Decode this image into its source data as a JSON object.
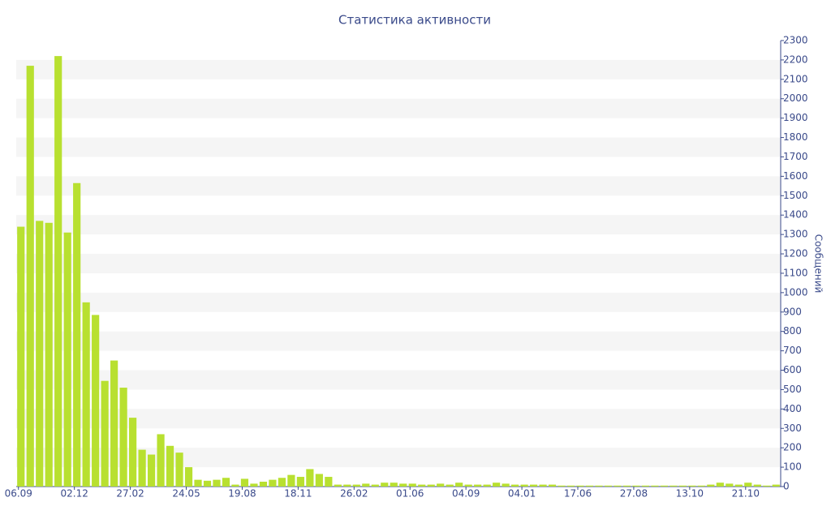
{
  "chart_data": {
    "type": "bar",
    "title": "Статистика активности",
    "y_label": "Сообщений",
    "color": "#b8e030",
    "categories": [
      "06.09",
      null,
      null,
      null,
      null,
      null,
      "02.12",
      null,
      null,
      null,
      null,
      null,
      "27.02",
      null,
      null,
      null,
      null,
      null,
      "24.05",
      null,
      null,
      null,
      null,
      null,
      "19.08",
      null,
      null,
      null,
      null,
      null,
      "18.11",
      null,
      null,
      null,
      null,
      null,
      "26.02",
      null,
      null,
      null,
      null,
      null,
      "01.06",
      null,
      null,
      null,
      null,
      null,
      "04.09",
      null,
      null,
      null,
      null,
      null,
      "04.01",
      null,
      null,
      null,
      null,
      null,
      "17.06",
      null,
      null,
      null,
      null,
      null,
      "27.08",
      null,
      null,
      null,
      null,
      null,
      "13.10",
      null,
      null,
      null,
      null,
      null,
      "21.10",
      null,
      null,
      null
    ],
    "values": [
      1340,
      2170,
      1370,
      1360,
      2220,
      1310,
      1565,
      950,
      885,
      545,
      650,
      510,
      355,
      190,
      165,
      270,
      210,
      175,
      100,
      35,
      30,
      35,
      45,
      10,
      40,
      15,
      25,
      35,
      45,
      60,
      50,
      90,
      65,
      50,
      10,
      10,
      10,
      15,
      10,
      20,
      20,
      15,
      15,
      10,
      10,
      15,
      10,
      20,
      10,
      10,
      10,
      20,
      15,
      10,
      10,
      10,
      10,
      10,
      5,
      5,
      5,
      5,
      5,
      5,
      5,
      5,
      5,
      5,
      5,
      5,
      5,
      5,
      5,
      5,
      10,
      20,
      15,
      10,
      20,
      10,
      5,
      10
    ],
    "ylim": [
      0,
      2300
    ],
    "yticks": [
      0,
      100,
      200,
      300,
      400,
      500,
      600,
      700,
      800,
      900,
      1000,
      1100,
      1200,
      1300,
      1400,
      1500,
      1600,
      1700,
      1800,
      1900,
      2000,
      2100,
      2200,
      2300
    ],
    "grid": true
  }
}
